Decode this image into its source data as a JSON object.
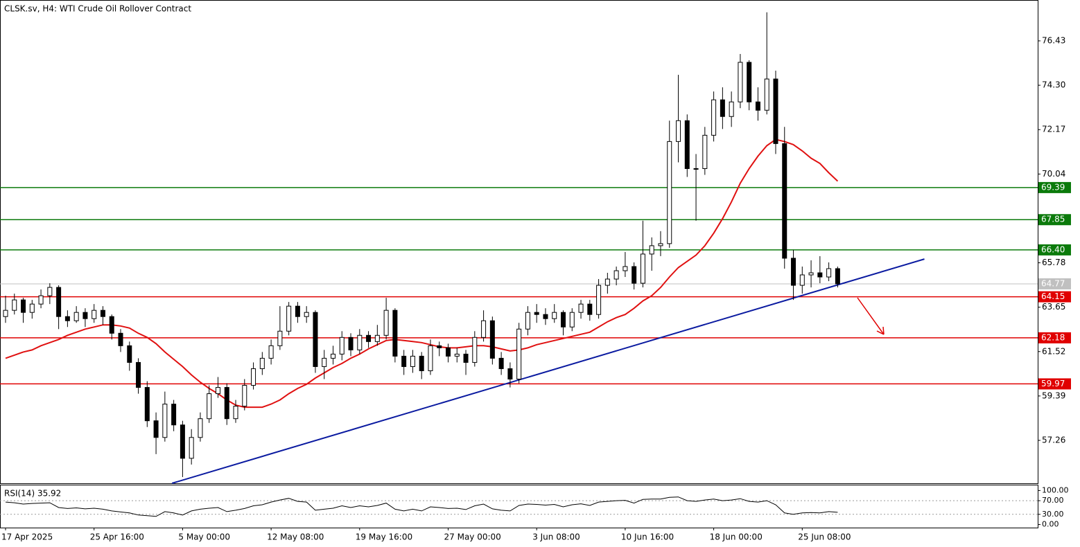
{
  "chart_data": {
    "type": "candlestick",
    "title": "CLSK.sv, H4:  WTI Crude Oil Rollover Contract",
    "categories": [
      "17 Apr 2025",
      null,
      null,
      null,
      null,
      null,
      null,
      null,
      null,
      null,
      "25 Apr 16:00",
      null,
      null,
      null,
      null,
      null,
      null,
      null,
      null,
      null,
      "5 May 00:00",
      null,
      null,
      null,
      null,
      null,
      null,
      null,
      null,
      null,
      "12 May 08:00",
      null,
      null,
      null,
      null,
      null,
      null,
      null,
      null,
      null,
      "19 May 16:00",
      null,
      null,
      null,
      null,
      null,
      null,
      null,
      null,
      null,
      "27 May 00:00",
      null,
      null,
      null,
      null,
      null,
      null,
      null,
      null,
      null,
      "3 Jun 08:00",
      null,
      null,
      null,
      null,
      null,
      null,
      null,
      null,
      null,
      "10 Jun 16:00",
      null,
      null,
      null,
      null,
      null,
      null,
      null,
      null,
      null,
      "18 Jun 00:00",
      null,
      null,
      null,
      null,
      null,
      null,
      null,
      null,
      null,
      "25 Jun 08:00",
      null,
      null,
      null,
      null
    ],
    "ohlc": [
      [
        63.2,
        64.2,
        62.9,
        63.5
      ],
      [
        63.5,
        64.3,
        63.3,
        64.0
      ],
      [
        64.0,
        64.1,
        62.9,
        63.4
      ],
      [
        63.4,
        64.0,
        63.1,
        63.8
      ],
      [
        63.8,
        64.5,
        63.6,
        64.2
      ],
      [
        64.2,
        64.8,
        63.8,
        64.6
      ],
      [
        64.6,
        64.7,
        62.6,
        63.2
      ],
      [
        63.2,
        63.5,
        62.7,
        63.0
      ],
      [
        63.0,
        63.7,
        62.9,
        63.4
      ],
      [
        63.4,
        63.6,
        62.7,
        63.1
      ],
      [
        63.1,
        63.8,
        62.9,
        63.5
      ],
      [
        63.5,
        63.7,
        62.8,
        63.2
      ],
      [
        63.2,
        63.3,
        62.1,
        62.4
      ],
      [
        62.4,
        62.6,
        61.5,
        61.8
      ],
      [
        61.8,
        62.0,
        60.6,
        61.0
      ],
      [
        61.0,
        61.2,
        59.5,
        59.8
      ],
      [
        59.8,
        60.1,
        57.9,
        58.2
      ],
      [
        58.2,
        58.6,
        56.6,
        57.4
      ],
      [
        57.4,
        59.6,
        57.2,
        59.0
      ],
      [
        59.0,
        59.2,
        57.7,
        58.0
      ],
      [
        58.0,
        58.2,
        55.5,
        56.4
      ],
      [
        56.4,
        57.8,
        56.1,
        57.4
      ],
      [
        57.4,
        58.6,
        57.2,
        58.3
      ],
      [
        58.3,
        59.9,
        58.1,
        59.5
      ],
      [
        59.5,
        60.3,
        59.3,
        59.8
      ],
      [
        59.8,
        60.0,
        58.0,
        58.3
      ],
      [
        58.3,
        59.2,
        58.1,
        58.9
      ],
      [
        58.9,
        60.2,
        58.7,
        59.9
      ],
      [
        59.9,
        61.0,
        59.7,
        60.7
      ],
      [
        60.7,
        61.5,
        60.4,
        61.2
      ],
      [
        61.2,
        62.1,
        60.9,
        61.8
      ],
      [
        61.8,
        63.7,
        61.6,
        62.5
      ],
      [
        62.5,
        63.9,
        62.3,
        63.7
      ],
      [
        63.7,
        63.9,
        62.9,
        63.2
      ],
      [
        63.2,
        63.7,
        62.9,
        63.4
      ],
      [
        63.4,
        63.5,
        60.5,
        60.8
      ],
      [
        60.8,
        61.6,
        60.2,
        61.2
      ],
      [
        61.2,
        61.8,
        60.9,
        61.4
      ],
      [
        61.4,
        62.5,
        61.1,
        62.2
      ],
      [
        62.2,
        62.4,
        61.3,
        61.6
      ],
      [
        61.6,
        62.6,
        61.4,
        62.3
      ],
      [
        62.3,
        62.5,
        61.7,
        62.0
      ],
      [
        62.0,
        62.8,
        61.8,
        62.3
      ],
      [
        62.3,
        64.1,
        62.1,
        63.5
      ],
      [
        63.5,
        63.6,
        61.0,
        61.3
      ],
      [
        61.3,
        61.6,
        60.4,
        60.8
      ],
      [
        60.8,
        61.6,
        60.5,
        61.3
      ],
      [
        61.3,
        61.5,
        60.2,
        60.6
      ],
      [
        60.6,
        62.1,
        60.4,
        61.8
      ],
      [
        61.8,
        62.0,
        61.3,
        61.7
      ],
      [
        61.7,
        61.9,
        61.0,
        61.3
      ],
      [
        61.3,
        61.7,
        61.0,
        61.4
      ],
      [
        61.4,
        61.6,
        60.4,
        61.0
      ],
      [
        61.0,
        62.5,
        60.8,
        62.2
      ],
      [
        62.2,
        63.5,
        62.0,
        63.0
      ],
      [
        63.0,
        63.2,
        60.9,
        61.2
      ],
      [
        61.2,
        61.5,
        60.4,
        60.7
      ],
      [
        60.7,
        61.0,
        59.8,
        60.2
      ],
      [
        60.2,
        62.9,
        60.0,
        62.6
      ],
      [
        62.6,
        63.7,
        62.3,
        63.4
      ],
      [
        63.4,
        63.8,
        62.9,
        63.3
      ],
      [
        63.3,
        63.6,
        62.8,
        63.1
      ],
      [
        63.1,
        63.8,
        62.9,
        63.4
      ],
      [
        63.4,
        63.5,
        62.3,
        62.7
      ],
      [
        62.7,
        63.6,
        62.5,
        63.4
      ],
      [
        63.4,
        64.0,
        63.1,
        63.8
      ],
      [
        63.8,
        64.0,
        63.0,
        63.3
      ],
      [
        63.3,
        65.0,
        63.1,
        64.7
      ],
      [
        64.7,
        65.3,
        64.3,
        65.0
      ],
      [
        65.0,
        65.6,
        64.7,
        65.4
      ],
      [
        65.4,
        66.3,
        65.1,
        65.6
      ],
      [
        65.6,
        65.8,
        64.5,
        64.8
      ],
      [
        64.8,
        67.8,
        64.6,
        66.2
      ],
      [
        66.2,
        67.0,
        65.4,
        66.6
      ],
      [
        66.6,
        67.3,
        66.1,
        66.7
      ],
      [
        66.7,
        72.6,
        66.5,
        71.6
      ],
      [
        71.6,
        74.8,
        70.6,
        72.6
      ],
      [
        72.6,
        72.9,
        69.9,
        70.3
      ],
      [
        70.3,
        71.0,
        67.8,
        70.3
      ],
      [
        70.3,
        72.3,
        70.0,
        71.9
      ],
      [
        71.9,
        74.0,
        71.6,
        73.6
      ],
      [
        73.6,
        74.2,
        72.2,
        72.8
      ],
      [
        72.8,
        74.0,
        72.3,
        73.5
      ],
      [
        73.5,
        75.8,
        73.2,
        75.4
      ],
      [
        75.4,
        75.5,
        73.1,
        73.5
      ],
      [
        73.5,
        74.2,
        72.6,
        73.1
      ],
      [
        73.1,
        77.8,
        72.9,
        74.6
      ],
      [
        74.6,
        75.0,
        71.0,
        71.5
      ],
      [
        71.5,
        72.3,
        65.5,
        66.0
      ],
      [
        66.0,
        66.4,
        64.0,
        64.7
      ],
      [
        64.7,
        65.6,
        64.3,
        65.2
      ],
      [
        65.2,
        65.9,
        64.6,
        65.3
      ],
      [
        65.3,
        66.1,
        64.8,
        65.1
      ],
      [
        65.1,
        65.8,
        64.9,
        65.5
      ],
      [
        65.5,
        65.6,
        64.6,
        64.77
      ]
    ],
    "candle_color": "#000000",
    "up_fill": "#ffffff",
    "down_fill": "#000000",
    "ylim": [
      55.2,
      78.39
    ],
    "yticks": [
      76.43,
      {
        "value": 74.3,
        "label": "74.30"
      },
      72.17,
      70.04,
      65.78,
      63.65,
      61.52,
      59.39,
      57.26
    ],
    "ma": {
      "color": "#e01010",
      "values": [
        61.2,
        61.35,
        61.5,
        61.6,
        61.8,
        61.95,
        62.1,
        62.3,
        62.45,
        62.6,
        62.7,
        62.8,
        62.8,
        62.75,
        62.65,
        62.4,
        62.2,
        61.9,
        61.5,
        61.15,
        60.8,
        60.4,
        60.05,
        59.75,
        59.5,
        59.2,
        58.95,
        58.85,
        58.85,
        58.85,
        59.0,
        59.2,
        59.5,
        59.75,
        59.95,
        60.25,
        60.5,
        60.75,
        60.95,
        61.2,
        61.4,
        61.65,
        61.85,
        62.05,
        62.1,
        62.05,
        62.0,
        61.95,
        61.85,
        61.75,
        61.7,
        61.7,
        61.75,
        61.8,
        61.8,
        61.75,
        61.65,
        61.55,
        61.6,
        61.7,
        61.85,
        61.95,
        62.05,
        62.15,
        62.25,
        62.35,
        62.45,
        62.7,
        62.95,
        63.15,
        63.3,
        63.6,
        63.95,
        64.2,
        64.6,
        65.1,
        65.55,
        65.85,
        66.15,
        66.6,
        67.2,
        67.9,
        68.7,
        69.6,
        70.3,
        70.9,
        71.4,
        71.7,
        71.6,
        71.45,
        71.15,
        70.8,
        70.55,
        70.1,
        69.7
      ]
    },
    "levels": [
      {
        "value": 69.39,
        "color": "#0b7a0b"
      },
      {
        "value": 67.85,
        "color": "#0b7a0b"
      },
      {
        "value": 66.4,
        "label": "66.40",
        "color": "#0b7a0b"
      },
      {
        "value": 64.15,
        "color": "#e00000"
      },
      {
        "value": 62.18,
        "color": "#e00000"
      },
      {
        "value": 59.97,
        "color": "#e00000"
      }
    ],
    "last_price_color": "#c0c0c0",
    "trendline": {
      "color": "#0a1aa0",
      "from": [
        18.8,
        55.2
      ],
      "to": [
        103.8,
        65.96
      ]
    },
    "rsi": {
      "label": "RSI(14) 35.92",
      "color": "#000000",
      "values": [
        66,
        64,
        60,
        62,
        63,
        64,
        50,
        47,
        49,
        46,
        48,
        45,
        40,
        37,
        34,
        28,
        26,
        24,
        38,
        34,
        28,
        40,
        45,
        48,
        50,
        38,
        42,
        47,
        55,
        58,
        66,
        72,
        77,
        68,
        66,
        42,
        45,
        48,
        55,
        50,
        55,
        52,
        56,
        63,
        45,
        40,
        45,
        40,
        52,
        50,
        47,
        48,
        44,
        55,
        60,
        46,
        42,
        40,
        56,
        60,
        59,
        57,
        59,
        52,
        58,
        61,
        56,
        66,
        68,
        70,
        71,
        63,
        74,
        75,
        75,
        80,
        81,
        70,
        68,
        72,
        75,
        70,
        72,
        76,
        68,
        66,
        70,
        58,
        34,
        30,
        34,
        35,
        34,
        38,
        35.92
      ],
      "ylim": [
        -9,
        117
      ],
      "yticks": [
        {
          "value": 100,
          "label": "100.00"
        },
        {
          "value": 70,
          "label": "70.00"
        },
        {
          "value": 30,
          "label": "30.00"
        },
        {
          "value": 0,
          "label": "0.00"
        }
      ],
      "dotted_levels": [
        70,
        30
      ]
    }
  }
}
